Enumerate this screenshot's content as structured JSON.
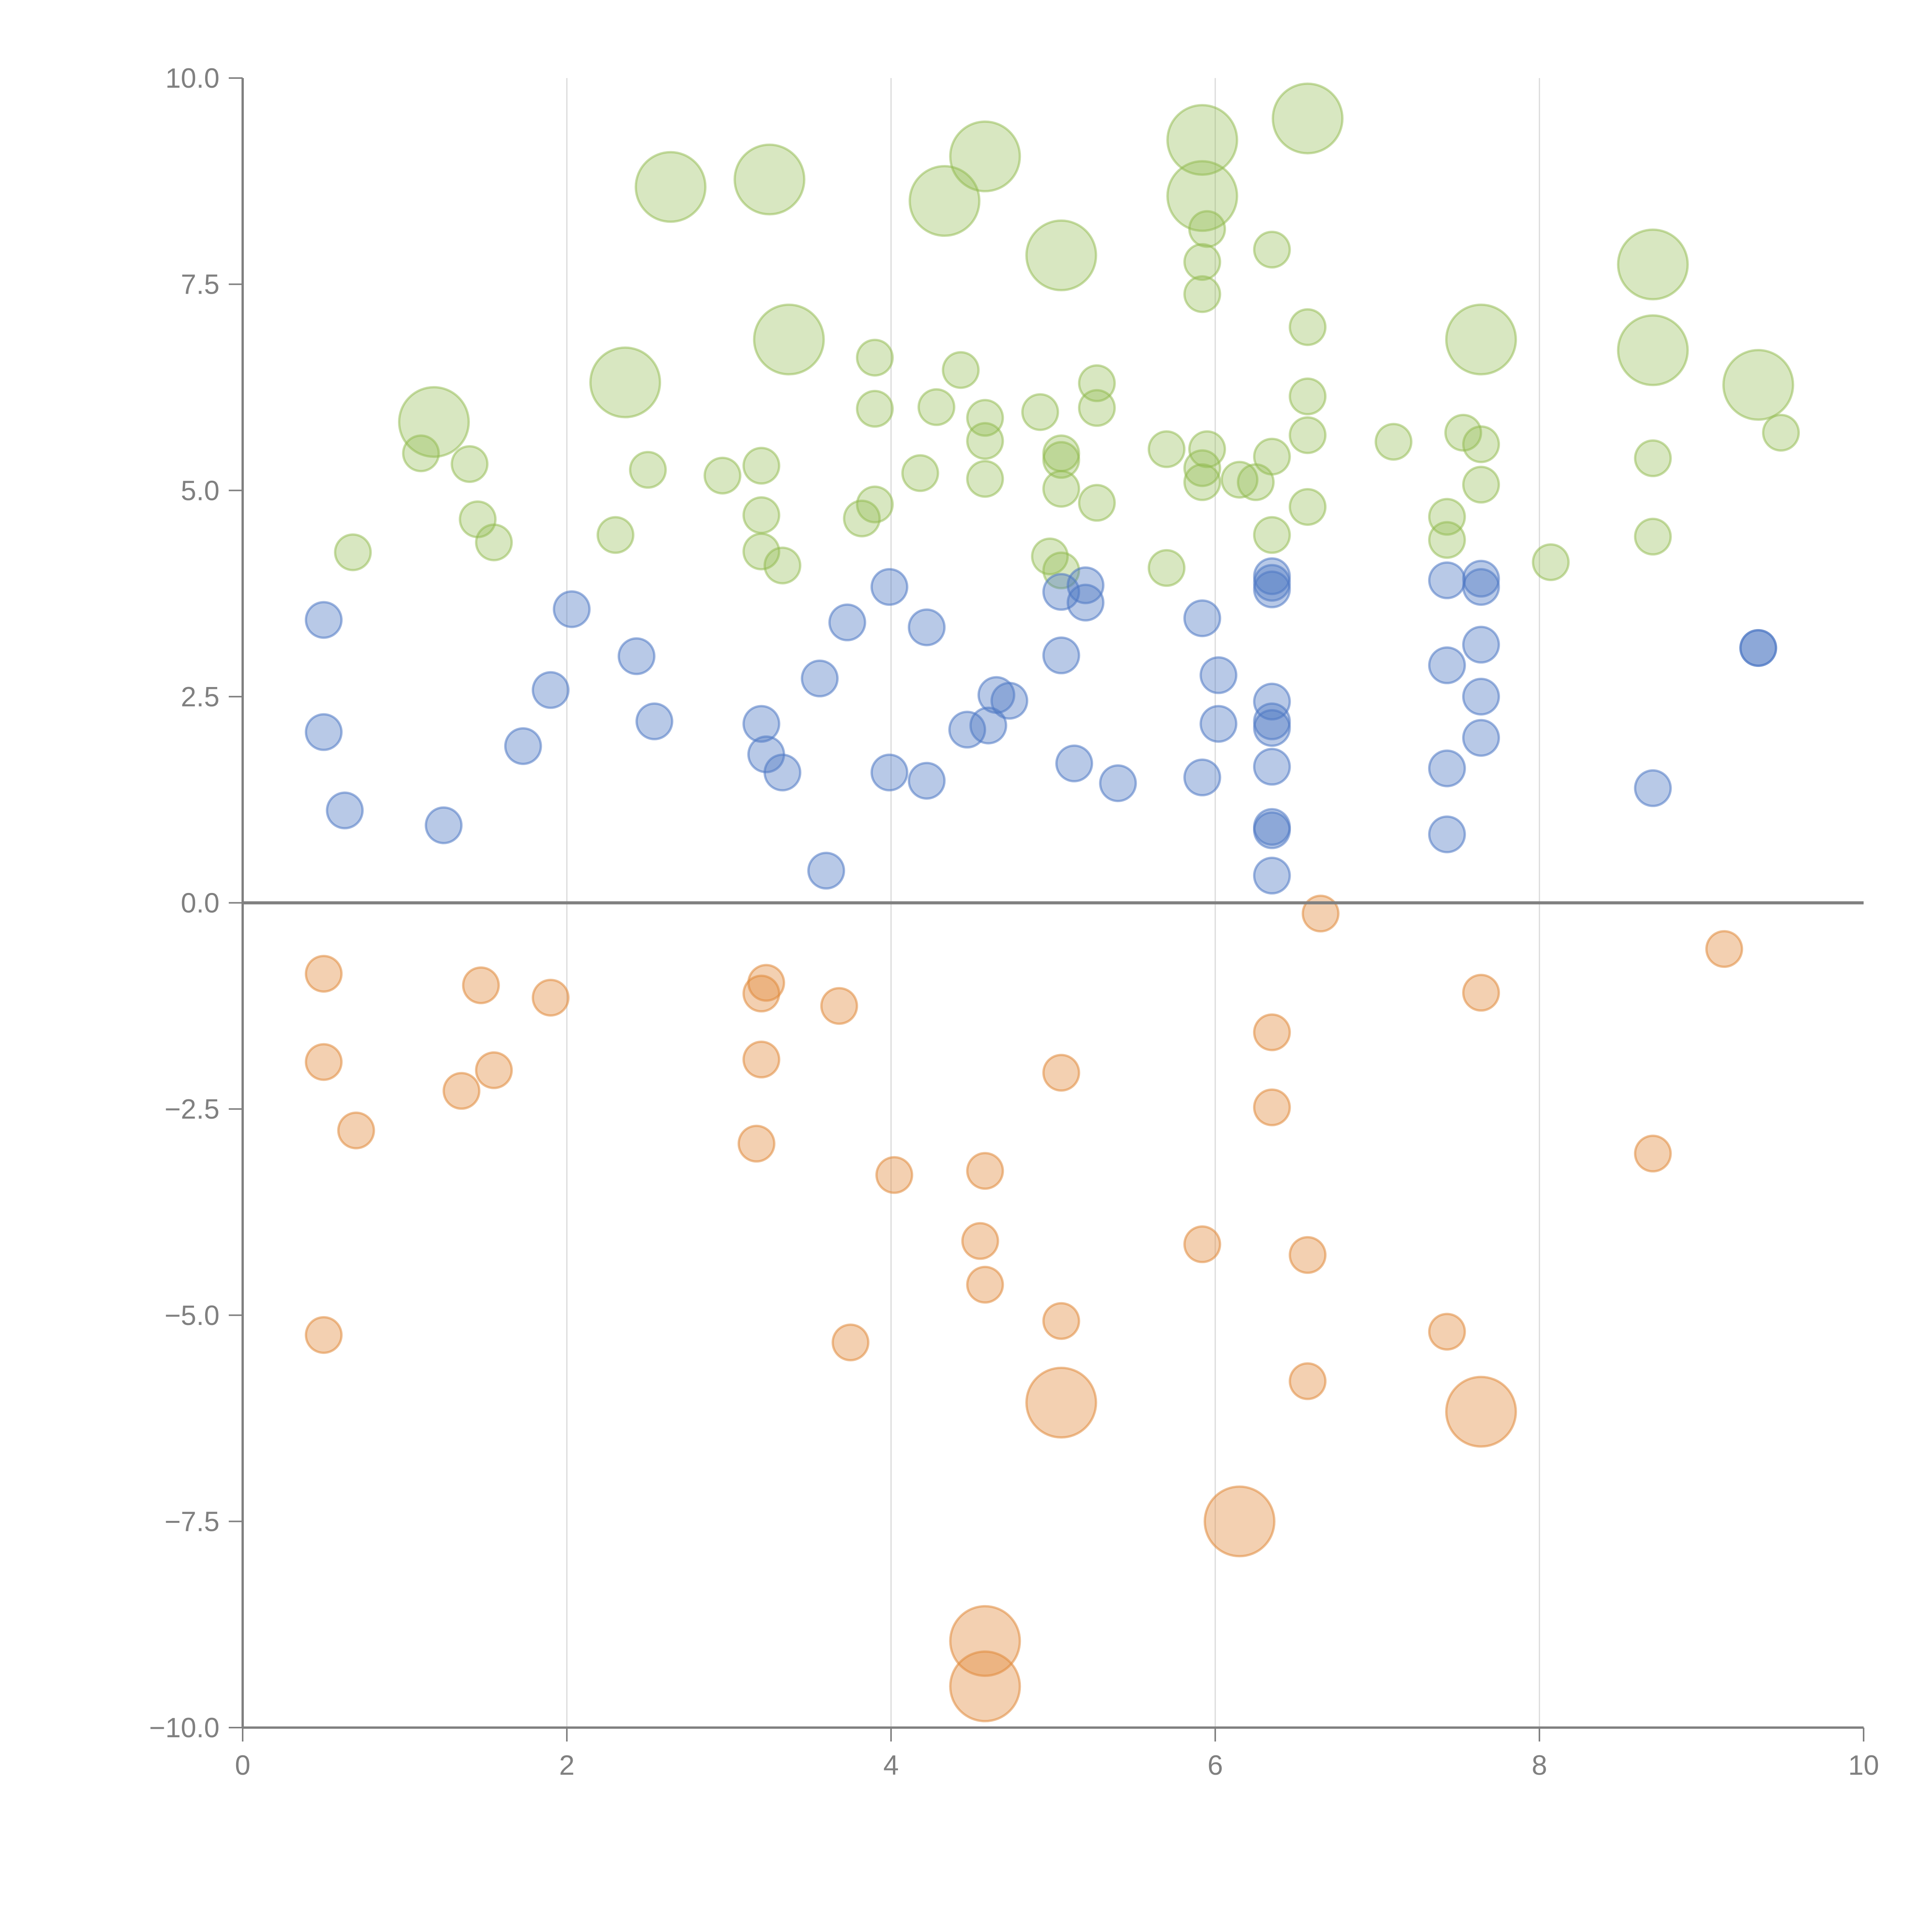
{
  "chart_data": {
    "type": "scatter",
    "subtype": "bubble",
    "title": "",
    "xlabel": "",
    "ylabel": "",
    "xlim": [
      0,
      10
    ],
    "ylim": [
      -10,
      10
    ],
    "x_ticks": [
      "0",
      "2",
      "4",
      "6",
      "8",
      "10"
    ],
    "y_ticks": [
      "10.0",
      "7.5",
      "5.0",
      "2.5",
      "0.0",
      "−2.5",
      "−5.0",
      "−7.5",
      "−10.0"
    ],
    "x_tick_values": [
      0,
      2,
      4,
      6,
      8,
      10
    ],
    "y_tick_values": [
      10,
      7.5,
      5,
      2.5,
      0,
      -2.5,
      -5,
      -7.5,
      -10
    ],
    "grid": {
      "vertical": true,
      "horizontal": false,
      "zero_line": true
    },
    "legend": "none",
    "size_scale": {
      "small": 1,
      "large": 2
    },
    "series": [
      {
        "name": "green",
        "color": "#8fba4c",
        "opacity": 0.35,
        "points": [
          [
            2.64,
            8.68,
            2
          ],
          [
            3.25,
            8.77,
            2
          ],
          [
            4.33,
            8.51,
            2
          ],
          [
            4.58,
            9.05,
            2
          ],
          [
            5.92,
            9.25,
            2
          ],
          [
            6.57,
            9.51,
            2
          ],
          [
            5.92,
            8.57,
            2
          ],
          [
            5.05,
            7.85,
            2
          ],
          [
            8.7,
            7.74,
            2
          ],
          [
            3.37,
            6.83,
            2
          ],
          [
            7.64,
            6.83,
            2
          ],
          [
            2.36,
            6.31,
            2
          ],
          [
            8.7,
            6.7,
            2
          ],
          [
            9.35,
            6.28,
            2
          ],
          [
            1.18,
            5.83,
            2
          ],
          [
            5.95,
            8.17,
            1
          ],
          [
            6.35,
            7.92,
            1
          ],
          [
            5.92,
            7.77,
            1
          ],
          [
            5.92,
            7.38,
            1
          ],
          [
            6.57,
            6.98,
            1
          ],
          [
            3.9,
            6.61,
            1
          ],
          [
            4.43,
            6.46,
            1
          ],
          [
            5.27,
            6.3,
            1
          ],
          [
            6.57,
            6.14,
            1
          ],
          [
            3.9,
            5.99,
            1
          ],
          [
            4.28,
            6.01,
            1
          ],
          [
            4.92,
            5.95,
            1
          ],
          [
            5.27,
            6.0,
            1
          ],
          [
            4.58,
            5.88,
            1
          ],
          [
            4.58,
            5.6,
            1
          ],
          [
            6.57,
            5.67,
            1
          ],
          [
            7.1,
            5.59,
            1
          ],
          [
            7.53,
            5.7,
            1
          ],
          [
            7.64,
            5.56,
            1
          ],
          [
            9.49,
            5.7,
            1
          ],
          [
            1.1,
            5.45,
            1
          ],
          [
            1.4,
            5.32,
            1
          ],
          [
            5.05,
            5.45,
            1
          ],
          [
            5.05,
            5.37,
            1
          ],
          [
            5.7,
            5.5,
            1
          ],
          [
            5.95,
            5.5,
            1
          ],
          [
            6.35,
            5.41,
            1
          ],
          [
            2.5,
            5.25,
            1
          ],
          [
            2.96,
            5.18,
            1
          ],
          [
            3.2,
            5.3,
            1
          ],
          [
            4.18,
            5.21,
            1
          ],
          [
            4.58,
            5.14,
            1
          ],
          [
            5.92,
            5.27,
            1
          ],
          [
            5.92,
            5.1,
            1
          ],
          [
            6.15,
            5.13,
            1
          ],
          [
            6.25,
            5.1,
            1
          ],
          [
            7.64,
            5.07,
            1
          ],
          [
            8.7,
            5.39,
            1
          ],
          [
            5.05,
            5.02,
            1
          ],
          [
            1.45,
            4.65,
            1
          ],
          [
            1.55,
            4.37,
            1
          ],
          [
            2.3,
            4.46,
            1
          ],
          [
            3.2,
            4.7,
            1
          ],
          [
            3.82,
            4.66,
            1
          ],
          [
            3.9,
            4.83,
            1
          ],
          [
            5.27,
            4.85,
            1
          ],
          [
            6.57,
            4.8,
            1
          ],
          [
            7.43,
            4.68,
            1
          ],
          [
            6.35,
            4.46,
            1
          ],
          [
            7.43,
            4.4,
            1
          ],
          [
            8.7,
            4.44,
            1
          ],
          [
            0.68,
            4.25,
            1
          ],
          [
            3.2,
            4.26,
            1
          ],
          [
            3.33,
            4.09,
            1
          ],
          [
            4.98,
            4.2,
            1
          ],
          [
            5.7,
            4.06,
            1
          ],
          [
            8.07,
            4.13,
            1
          ],
          [
            5.05,
            4.03,
            1
          ]
        ]
      },
      {
        "name": "blue",
        "color": "#4e79c4",
        "opacity": 0.4,
        "points": [
          [
            0.5,
            3.43,
            1
          ],
          [
            2.03,
            3.56,
            1
          ],
          [
            3.73,
            3.4,
            1
          ],
          [
            3.99,
            3.83,
            1
          ],
          [
            4.22,
            3.34,
            1
          ],
          [
            5.05,
            3.77,
            1
          ],
          [
            5.2,
            3.85,
            1
          ],
          [
            5.2,
            3.64,
            1
          ],
          [
            5.92,
            3.45,
            1
          ],
          [
            6.35,
            3.96,
            1
          ],
          [
            6.35,
            3.88,
            1
          ],
          [
            6.35,
            3.8,
            1
          ],
          [
            7.43,
            3.91,
            1
          ],
          [
            7.64,
            3.93,
            1
          ],
          [
            7.64,
            3.83,
            1
          ],
          [
            9.35,
            3.09,
            1
          ],
          [
            9.35,
            3.09,
            1
          ],
          [
            2.43,
            2.99,
            1
          ],
          [
            5.05,
            3.0,
            1
          ],
          [
            7.64,
            3.13,
            1
          ],
          [
            7.43,
            2.88,
            1
          ],
          [
            6.02,
            2.76,
            1
          ],
          [
            3.56,
            2.72,
            1
          ],
          [
            1.9,
            2.58,
            1
          ],
          [
            4.65,
            2.52,
            1
          ],
          [
            4.73,
            2.45,
            1
          ],
          [
            6.35,
            2.44,
            1
          ],
          [
            7.64,
            2.5,
            1
          ],
          [
            0.5,
            2.07,
            1
          ],
          [
            2.54,
            2.2,
            1
          ],
          [
            3.2,
            2.17,
            1
          ],
          [
            4.47,
            2.1,
            1
          ],
          [
            4.6,
            2.15,
            1
          ],
          [
            6.02,
            2.17,
            1
          ],
          [
            6.35,
            2.2,
            1
          ],
          [
            6.35,
            2.12,
            1
          ],
          [
            7.64,
            2.0,
            1
          ],
          [
            1.73,
            1.9,
            1
          ],
          [
            3.23,
            1.8,
            1
          ],
          [
            3.33,
            1.58,
            1
          ],
          [
            3.99,
            1.58,
            1
          ],
          [
            4.22,
            1.48,
            1
          ],
          [
            5.13,
            1.69,
            1
          ],
          [
            5.4,
            1.45,
            1
          ],
          [
            5.92,
            1.52,
            1
          ],
          [
            6.35,
            1.65,
            1
          ],
          [
            7.43,
            1.63,
            1
          ],
          [
            8.7,
            1.39,
            1
          ],
          [
            0.63,
            1.12,
            1
          ],
          [
            1.24,
            0.94,
            1
          ],
          [
            6.35,
            0.92,
            1
          ],
          [
            6.35,
            0.88,
            1
          ],
          [
            7.43,
            0.83,
            1
          ],
          [
            3.6,
            0.39,
            1
          ],
          [
            6.35,
            0.33,
            1
          ]
        ]
      },
      {
        "name": "orange",
        "color": "#e08a3c",
        "opacity": 0.4,
        "points": [
          [
            6.65,
            -0.13,
            1
          ],
          [
            9.14,
            -0.56,
            1
          ],
          [
            0.5,
            -0.86,
            1
          ],
          [
            1.47,
            -1.0,
            1
          ],
          [
            1.9,
            -1.15,
            1
          ],
          [
            3.23,
            -0.97,
            1
          ],
          [
            3.2,
            -1.1,
            1
          ],
          [
            3.68,
            -1.25,
            1
          ],
          [
            7.64,
            -1.09,
            1
          ],
          [
            6.35,
            -1.57,
            1
          ],
          [
            0.5,
            -1.93,
            1
          ],
          [
            3.2,
            -1.9,
            1
          ],
          [
            1.55,
            -2.03,
            1
          ],
          [
            5.05,
            -2.06,
            1
          ],
          [
            1.35,
            -2.28,
            1
          ],
          [
            0.7,
            -2.76,
            1
          ],
          [
            6.35,
            -2.48,
            1
          ],
          [
            3.17,
            -2.92,
            1
          ],
          [
            8.7,
            -3.04,
            1
          ],
          [
            4.02,
            -3.3,
            1
          ],
          [
            4.58,
            -3.25,
            1
          ],
          [
            4.55,
            -4.1,
            1
          ],
          [
            5.92,
            -4.14,
            1
          ],
          [
            6.57,
            -4.27,
            1
          ],
          [
            4.58,
            -4.63,
            1
          ],
          [
            0.5,
            -5.24,
            1
          ],
          [
            3.75,
            -5.33,
            1
          ],
          [
            5.05,
            -5.07,
            1
          ],
          [
            7.43,
            -5.2,
            1
          ],
          [
            6.57,
            -5.8,
            1
          ],
          [
            5.05,
            -6.06,
            2
          ],
          [
            7.64,
            -6.17,
            2
          ],
          [
            6.15,
            -7.5,
            2
          ],
          [
            4.58,
            -8.95,
            2
          ],
          [
            4.58,
            -9.5,
            2
          ]
        ]
      }
    ]
  }
}
